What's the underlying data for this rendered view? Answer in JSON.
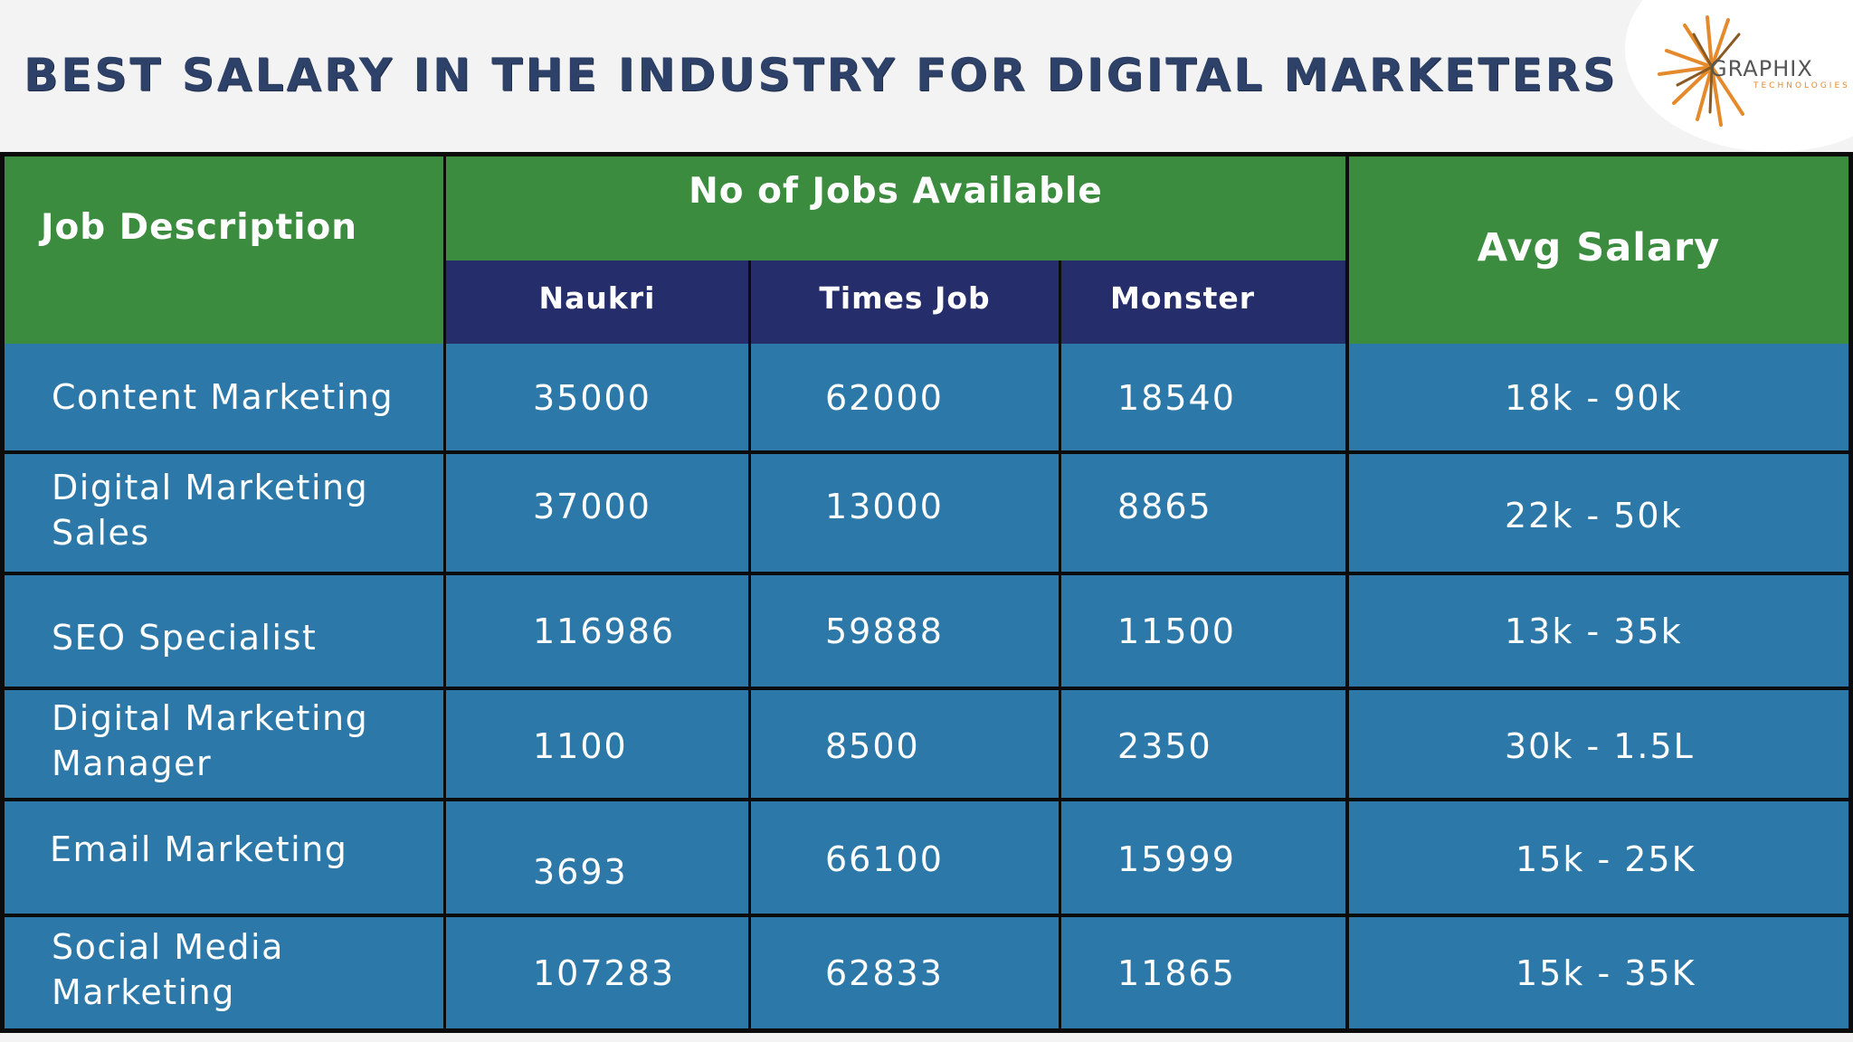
{
  "header": {
    "title": "BEST SALARY IN THE INDUSTRY FOR DIGITAL MARKETERS",
    "logo_text": "GRAPHIX",
    "logo_subtext": "TECHNOLOGIES",
    "logo_icon": "sunburst-icon"
  },
  "colors": {
    "title": "#2d4169",
    "header_green": "#3b8c3e",
    "subheader_navy": "#262d6b",
    "row_blue": "#2c78a8",
    "logo_orange": "#e58a2c"
  },
  "table": {
    "job_description_header": "Job Description",
    "jobs_available_header": "No of Jobs Available",
    "avg_salary_header": "Avg Salary",
    "portals": [
      "Naukri",
      "Times Job",
      "Monster"
    ],
    "rows": [
      {
        "job": "Content Marketing",
        "naukri": "35000",
        "times_job": "62000",
        "monster": "18540",
        "avg_salary": "18k - 90k"
      },
      {
        "job": "Digital Marketing Sales",
        "naukri": "37000",
        "times_job": "13000",
        "monster": "8865",
        "avg_salary": "22k - 50k"
      },
      {
        "job": "SEO Specialist",
        "naukri": "116986",
        "times_job": "59888",
        "monster": "11500",
        "avg_salary": "13k - 35k"
      },
      {
        "job": "Digital Marketing Manager",
        "naukri": "1100",
        "times_job": "8500",
        "monster": "2350",
        "avg_salary": "30k - 1.5L"
      },
      {
        "job": "Email Marketing",
        "naukri": "3693",
        "times_job": "66100",
        "monster": "15999",
        "avg_salary": "15k - 25K"
      },
      {
        "job": "Social Media Marketing",
        "naukri": "107283",
        "times_job": "62833",
        "monster": "11865",
        "avg_salary": "15k - 35K"
      }
    ]
  }
}
